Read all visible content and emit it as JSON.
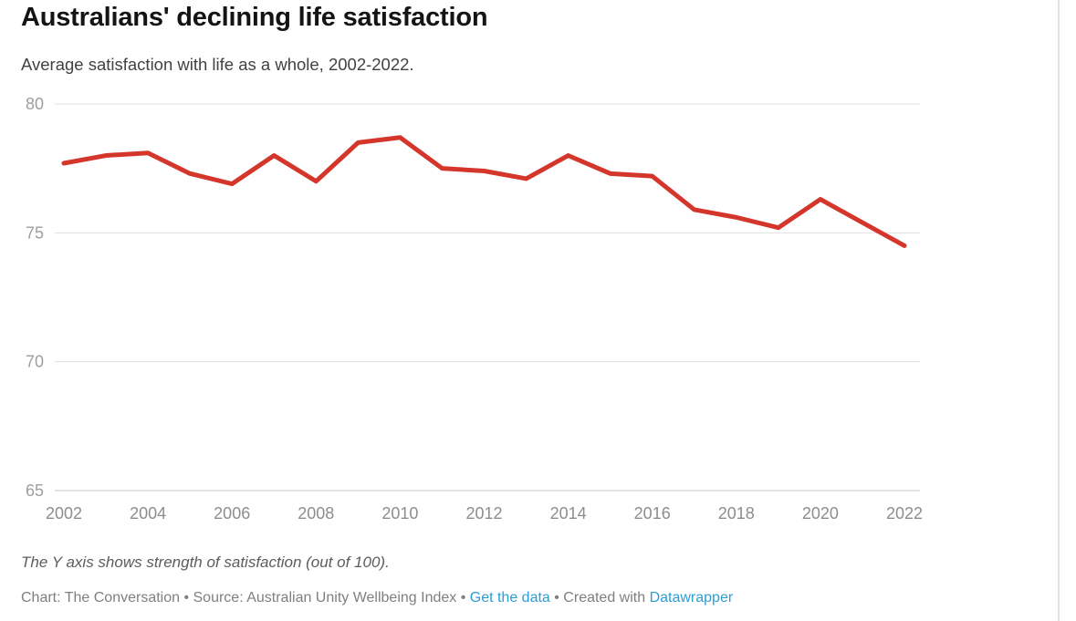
{
  "title": "Australians' declining life satisfaction",
  "subtitle": "Average satisfaction with life as a whole, 2002-2022.",
  "footnote": "The Y axis shows strength of satisfaction (out of 100).",
  "footer": {
    "prefix": "Chart: The Conversation • Source: Australian Unity Wellbeing Index • ",
    "get_data_label": "Get the data",
    "middle": " • Created with ",
    "datawrapper_label": "Datawrapper",
    "link_color": "#2b9ed3"
  },
  "colors": {
    "line": "#d4362b",
    "grid": "#e1e1e1",
    "baseline": "#c7c7c7",
    "y_tick_label": "#9e9e9e",
    "x_tick_label": "#8d8d8d",
    "title": "#141414",
    "subtitle": "#424242"
  },
  "chart_data": {
    "type": "line",
    "title": "Australians' declining life satisfaction",
    "subtitle": "Average satisfaction with life as a whole, 2002-2022.",
    "x": [
      2002,
      2003,
      2004,
      2005,
      2006,
      2007,
      2008,
      2009,
      2010,
      2011,
      2012,
      2013,
      2014,
      2015,
      2016,
      2017,
      2018,
      2019,
      2020,
      2021,
      2022
    ],
    "values": [
      77.7,
      78.0,
      78.1,
      77.3,
      76.9,
      78.0,
      77.0,
      78.5,
      78.7,
      77.5,
      77.4,
      77.1,
      78.0,
      77.3,
      77.2,
      75.9,
      75.6,
      75.2,
      76.3,
      75.4,
      74.5
    ],
    "xticks": [
      2002,
      2004,
      2006,
      2008,
      2010,
      2012,
      2014,
      2016,
      2018,
      2020,
      2022
    ],
    "yticks": [
      80,
      75,
      70,
      65
    ],
    "ylim": [
      65,
      80
    ],
    "grid": "horizontal",
    "legend": "none",
    "line_color": "#d4362b"
  }
}
